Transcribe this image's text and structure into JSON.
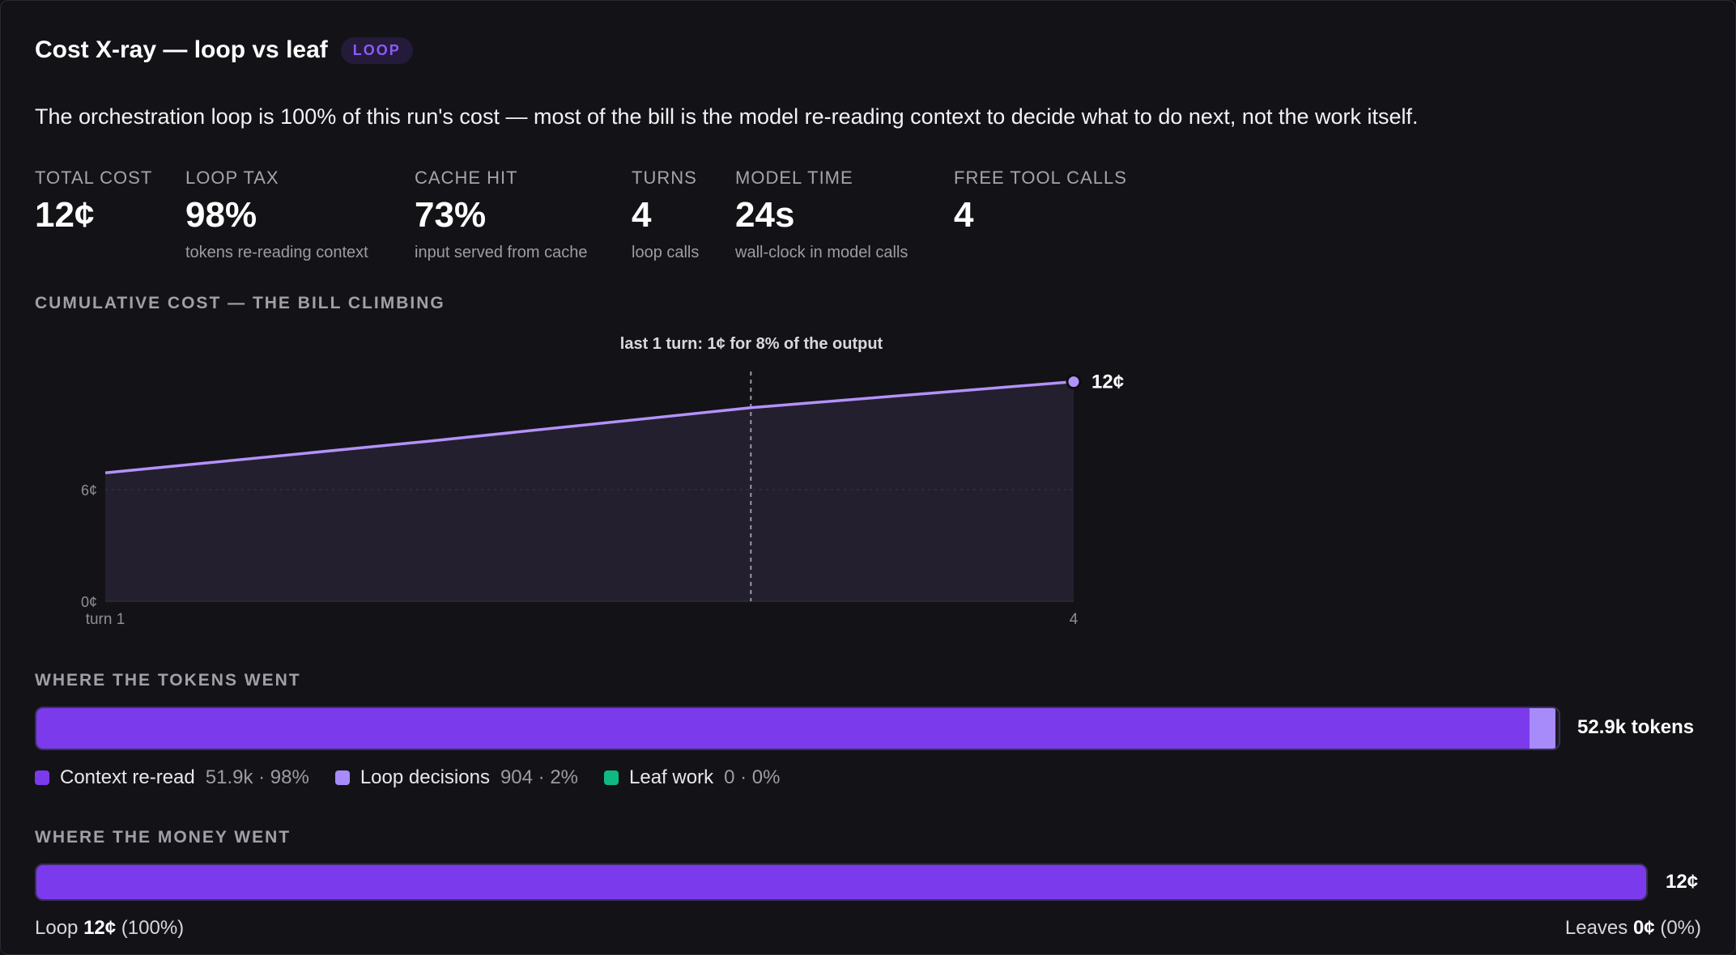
{
  "header": {
    "title": "Cost X-ray — loop vs leaf",
    "badge": "LOOP"
  },
  "summary": "The orchestration loop is 100% of this run's cost — most of the bill is the model re-reading context to decide what to do next, not the work itself.",
  "stats": [
    {
      "label": "TOTAL COST",
      "value": "12¢",
      "sub": ""
    },
    {
      "label": "LOOP TAX",
      "value": "98%",
      "sub": "tokens re-reading context"
    },
    {
      "label": "CACHE HIT",
      "value": "73%",
      "sub": "input served from cache"
    },
    {
      "label": "TURNS",
      "value": "4",
      "sub": "loop calls"
    },
    {
      "label": "MODEL TIME",
      "value": "24s",
      "sub": "wall-clock in model calls"
    },
    {
      "label": "FREE TOOL CALLS",
      "value": "4",
      "sub": ""
    }
  ],
  "cumulative": {
    "section_title": "CUMULATIVE COST — THE BILL CLIMBING",
    "annotation": "last 1 turn: 1¢ for 8% of the output",
    "end_label": "12¢"
  },
  "chart_data": {
    "type": "area",
    "title": "CUMULATIVE COST — THE BILL CLIMBING",
    "x": [
      1,
      2,
      3,
      4
    ],
    "xlabel": "",
    "ylabel": "",
    "x_tick_labels": [
      "turn 1",
      "4"
    ],
    "y_ticks": [
      0,
      6
    ],
    "y_tick_labels": [
      "0¢",
      "6¢"
    ],
    "xlim": [
      1,
      4
    ],
    "ylim": [
      0,
      12
    ],
    "series": [
      {
        "values": [
          6.9,
          8.6,
          10.4,
          11.8
        ],
        "color": "#b392fb"
      }
    ],
    "marker_x": 3,
    "annotation": "last 1 turn: 1¢ for 8% of the output",
    "end_label": "12¢",
    "grid": false
  },
  "tokens": {
    "section_title": "WHERE THE TOKENS WENT",
    "total_label": "52.9k tokens",
    "segments": [
      {
        "name": "Context re-read",
        "value_label": "51.9k · 98%",
        "fraction": 0.9829,
        "color": "#7c3aed"
      },
      {
        "name": "Loop decisions",
        "value_label": "904 · 2%",
        "fraction": 0.0171,
        "color": "#a78bfa"
      },
      {
        "name": "Leaf work",
        "value_label": "0 · 0%",
        "fraction": 0,
        "color": "#10b981"
      }
    ]
  },
  "money": {
    "section_title": "WHERE THE MONEY WENT",
    "total_label": "12¢",
    "loop_fraction": 1.0,
    "loop_prefix": "Loop",
    "loop_amount": "12¢",
    "loop_pct": "(100%)",
    "leaves_prefix": "Leaves",
    "leaves_amount": "0¢",
    "leaves_pct": "(0%)"
  }
}
